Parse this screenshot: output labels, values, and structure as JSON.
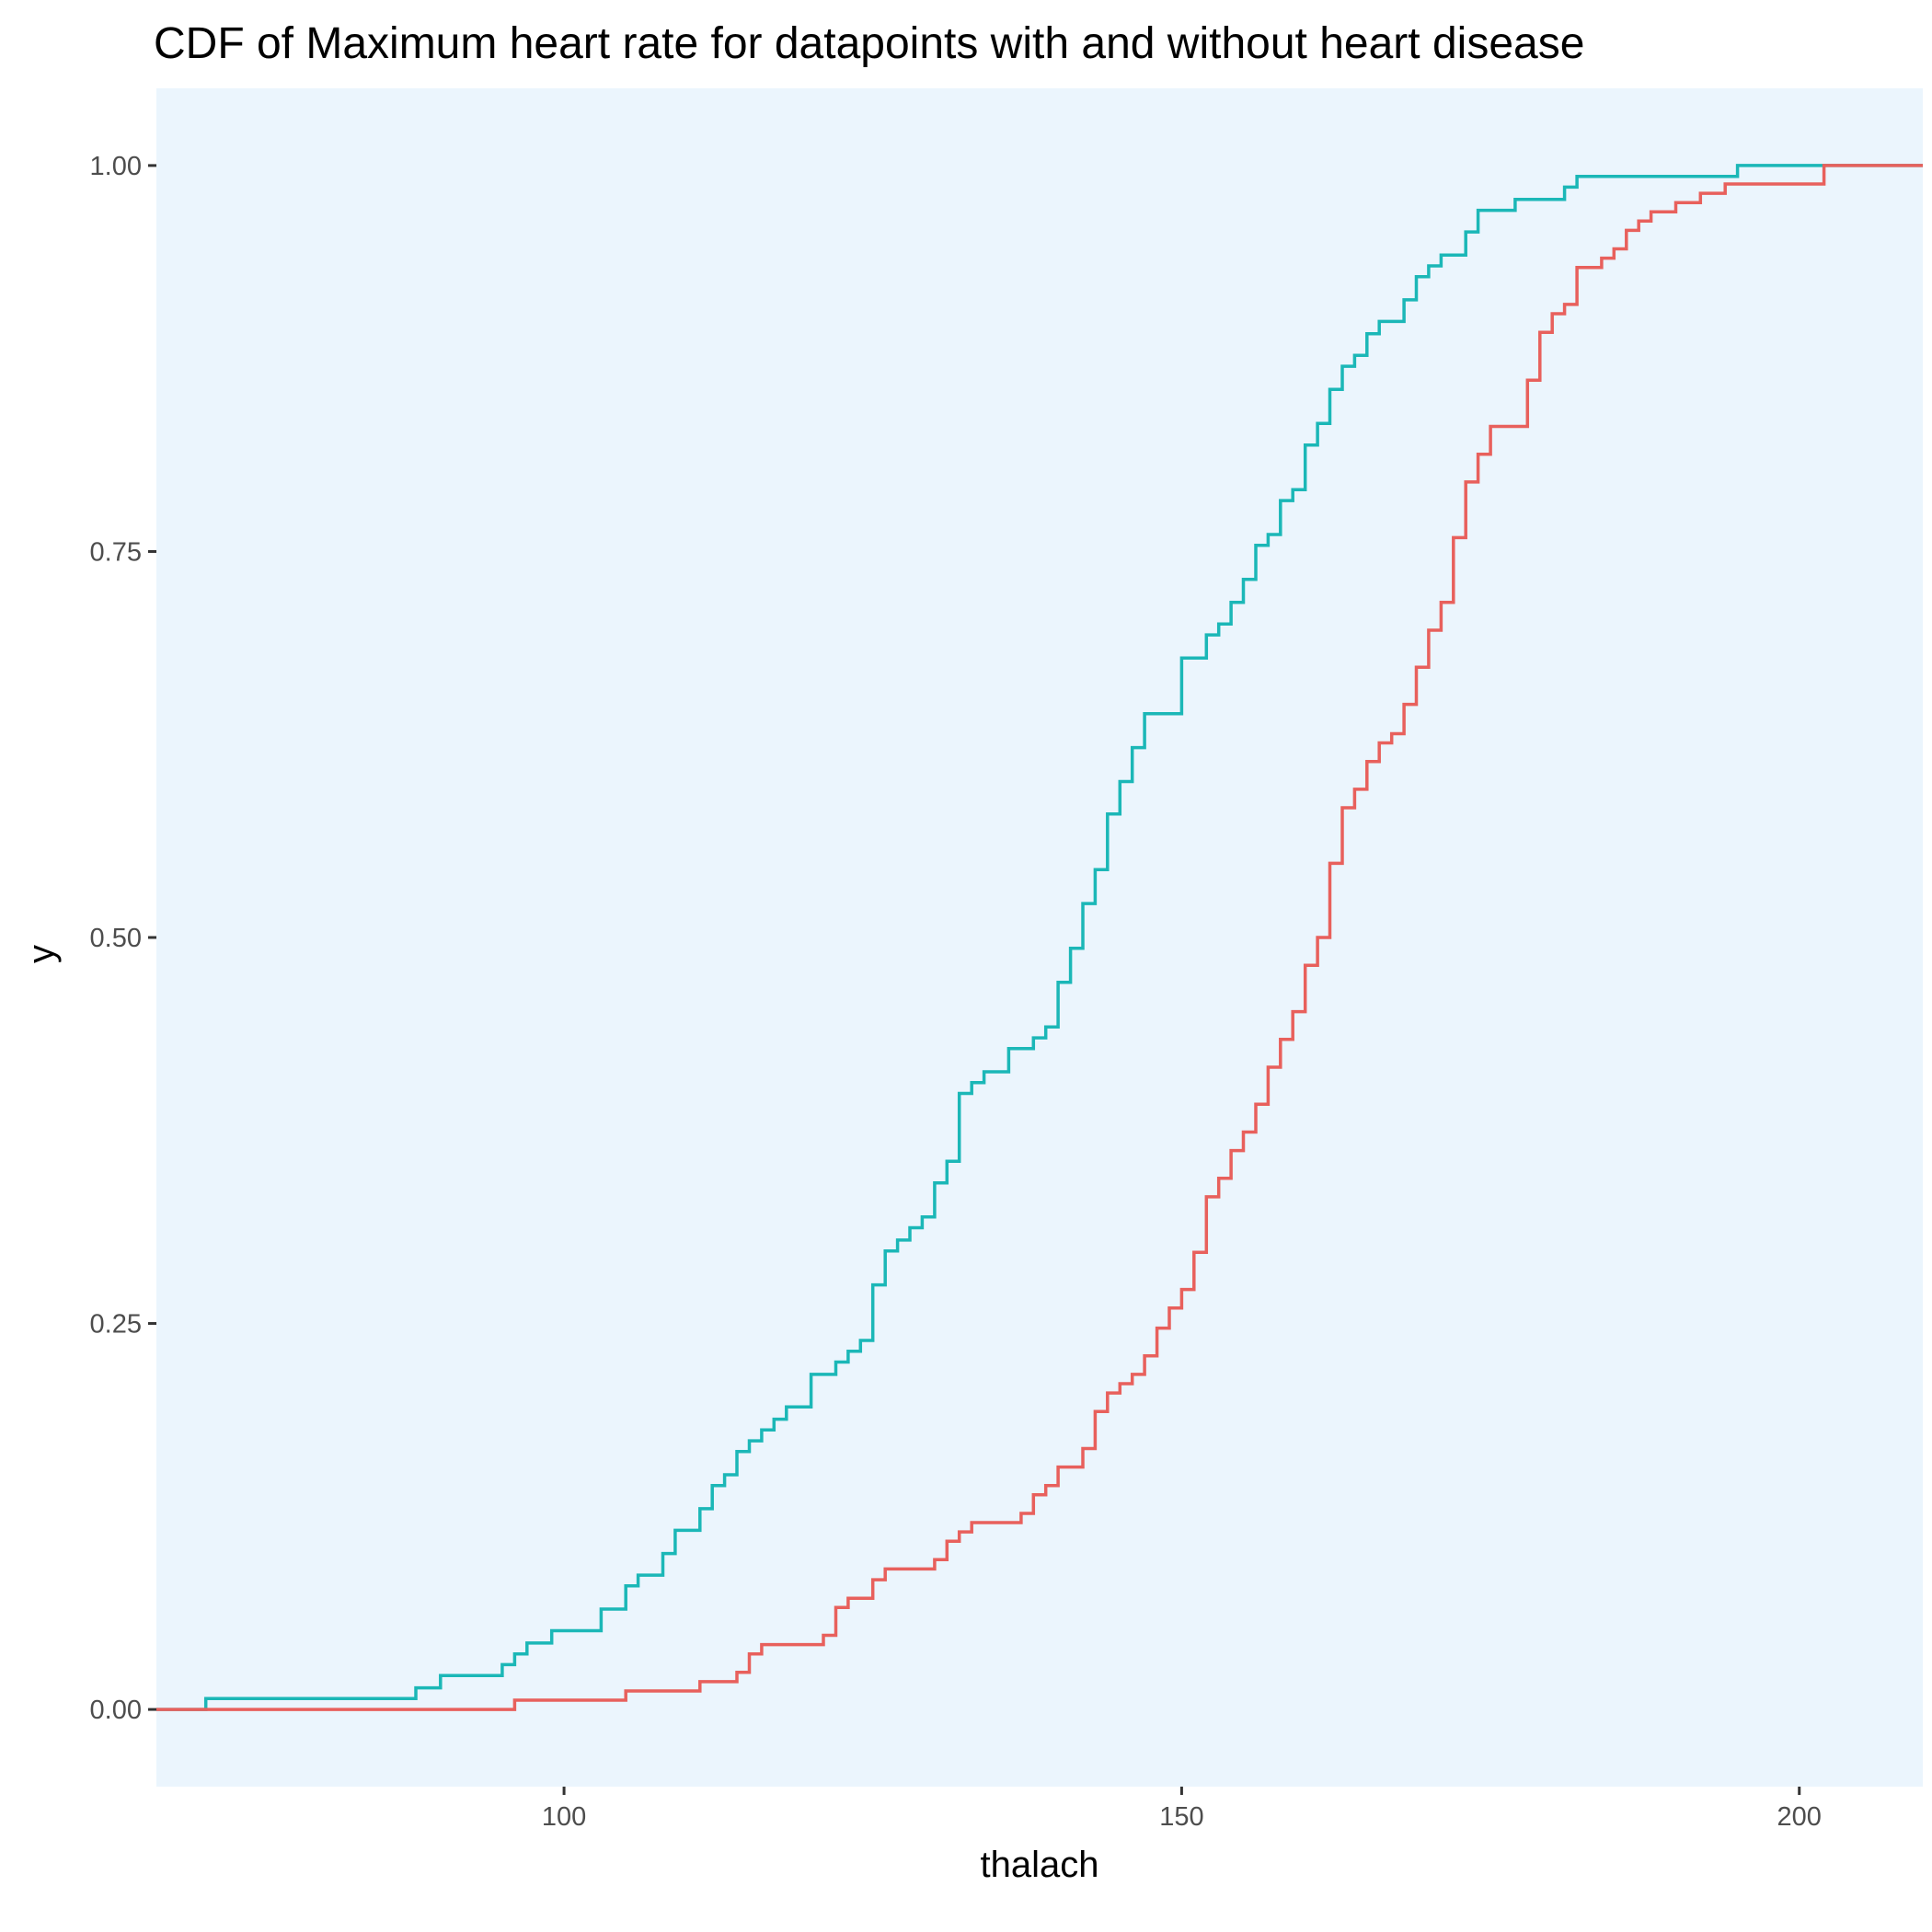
{
  "chart_data": {
    "type": "line",
    "subtype": "step-cdf",
    "title": "CDF of Maximum heart rate for datapoints with and without heart disease",
    "xlabel": "thalach",
    "ylabel": "y",
    "xlim": [
      67,
      210
    ],
    "ylim": [
      -0.05,
      1.05
    ],
    "x_ticks": [
      100,
      150,
      200
    ],
    "x_tick_labels": [
      "100",
      "150",
      "200"
    ],
    "y_ticks": [
      0,
      0.25,
      0.5,
      0.75,
      1.0
    ],
    "y_tick_labels": [
      "0.00",
      "0.25",
      "0.50",
      "0.75",
      "1.00"
    ],
    "grid": false,
    "legend": "none",
    "background_color": "#EBF5FD",
    "series": [
      {
        "color": "#1BB7B7",
        "points": [
          [
            67,
            0
          ],
          [
            71,
            0.007
          ],
          [
            88,
            0.014
          ],
          [
            90,
            0.022
          ],
          [
            95,
            0.029
          ],
          [
            96,
            0.036
          ],
          [
            97,
            0.043
          ],
          [
            99,
            0.051
          ],
          [
            103,
            0.065
          ],
          [
            105,
            0.08
          ],
          [
            106,
            0.087
          ],
          [
            108,
            0.101
          ],
          [
            109,
            0.116
          ],
          [
            111,
            0.13
          ],
          [
            112,
            0.145
          ],
          [
            113,
            0.152
          ],
          [
            114,
            0.167
          ],
          [
            115,
            0.174
          ],
          [
            116,
            0.181
          ],
          [
            117,
            0.188
          ],
          [
            118,
            0.196
          ],
          [
            120,
            0.217
          ],
          [
            122,
            0.225
          ],
          [
            123,
            0.232
          ],
          [
            124,
            0.239
          ],
          [
            125,
            0.275
          ],
          [
            126,
            0.297
          ],
          [
            127,
            0.304
          ],
          [
            128,
            0.312
          ],
          [
            129,
            0.319
          ],
          [
            130,
            0.341
          ],
          [
            131,
            0.355
          ],
          [
            132,
            0.399
          ],
          [
            133,
            0.406
          ],
          [
            134,
            0.413
          ],
          [
            136,
            0.428
          ],
          [
            138,
            0.435
          ],
          [
            139,
            0.442
          ],
          [
            140,
            0.471
          ],
          [
            141,
            0.493
          ],
          [
            142,
            0.522
          ],
          [
            143,
            0.544
          ],
          [
            144,
            0.58
          ],
          [
            145,
            0.601
          ],
          [
            146,
            0.623
          ],
          [
            147,
            0.645
          ],
          [
            150,
            0.681
          ],
          [
            152,
            0.696
          ],
          [
            153,
            0.703
          ],
          [
            154,
            0.717
          ],
          [
            155,
            0.732
          ],
          [
            156,
            0.754
          ],
          [
            157,
            0.761
          ],
          [
            158,
            0.783
          ],
          [
            159,
            0.79
          ],
          [
            160,
            0.819
          ],
          [
            161,
            0.833
          ],
          [
            162,
            0.855
          ],
          [
            163,
            0.87
          ],
          [
            164,
            0.877
          ],
          [
            165,
            0.891
          ],
          [
            166,
            0.899
          ],
          [
            168,
            0.913
          ],
          [
            169,
            0.928
          ],
          [
            170,
            0.935
          ],
          [
            171,
            0.942
          ],
          [
            173,
            0.957
          ],
          [
            174,
            0.971
          ],
          [
            177,
            0.978
          ],
          [
            181,
            0.986
          ],
          [
            182,
            0.993
          ],
          [
            195,
            1.0
          ],
          [
            210,
            1.0
          ]
        ]
      },
      {
        "color": "#E8605C",
        "points": [
          [
            67,
            0
          ],
          [
            96,
            0.006
          ],
          [
            105,
            0.012
          ],
          [
            111,
            0.018
          ],
          [
            114,
            0.024
          ],
          [
            115,
            0.036
          ],
          [
            116,
            0.042
          ],
          [
            121,
            0.048
          ],
          [
            122,
            0.066
          ],
          [
            123,
            0.072
          ],
          [
            125,
            0.084
          ],
          [
            126,
            0.091
          ],
          [
            130,
            0.097
          ],
          [
            131,
            0.109
          ],
          [
            132,
            0.115
          ],
          [
            133,
            0.121
          ],
          [
            137,
            0.127
          ],
          [
            138,
            0.139
          ],
          [
            139,
            0.145
          ],
          [
            140,
            0.157
          ],
          [
            142,
            0.169
          ],
          [
            143,
            0.193
          ],
          [
            144,
            0.205
          ],
          [
            145,
            0.211
          ],
          [
            146,
            0.217
          ],
          [
            147,
            0.229
          ],
          [
            148,
            0.247
          ],
          [
            149,
            0.26
          ],
          [
            150,
            0.272
          ],
          [
            151,
            0.296
          ],
          [
            152,
            0.332
          ],
          [
            153,
            0.344
          ],
          [
            154,
            0.362
          ],
          [
            155,
            0.374
          ],
          [
            156,
            0.392
          ],
          [
            157,
            0.416
          ],
          [
            158,
            0.434
          ],
          [
            159,
            0.452
          ],
          [
            160,
            0.482
          ],
          [
            161,
            0.5
          ],
          [
            162,
            0.548
          ],
          [
            163,
            0.584
          ],
          [
            164,
            0.596
          ],
          [
            165,
            0.614
          ],
          [
            166,
            0.626
          ],
          [
            167,
            0.632
          ],
          [
            168,
            0.651
          ],
          [
            169,
            0.675
          ],
          [
            170,
            0.699
          ],
          [
            171,
            0.717
          ],
          [
            172,
            0.759
          ],
          [
            173,
            0.795
          ],
          [
            174,
            0.813
          ],
          [
            175,
            0.831
          ],
          [
            178,
            0.861
          ],
          [
            179,
            0.892
          ],
          [
            180,
            0.904
          ],
          [
            181,
            0.91
          ],
          [
            182,
            0.934
          ],
          [
            184,
            0.94
          ],
          [
            185,
            0.946
          ],
          [
            186,
            0.958
          ],
          [
            187,
            0.964
          ],
          [
            188,
            0.97
          ],
          [
            190,
            0.976
          ],
          [
            192,
            0.982
          ],
          [
            194,
            0.988
          ],
          [
            202,
            1.0
          ],
          [
            210,
            1.0
          ]
        ]
      }
    ]
  }
}
